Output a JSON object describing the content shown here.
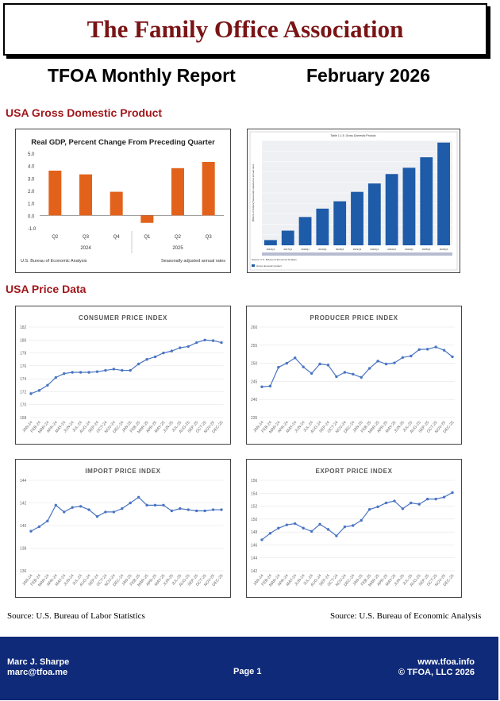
{
  "header": {
    "org_name": "The Family Office Association"
  },
  "report": {
    "title": "TFOA Monthly Report",
    "date": "February 2026"
  },
  "sections": {
    "gdp": "USA Gross Domestic Product",
    "price": "USA Price Data"
  },
  "sources": {
    "left": "Source: U.S. Bureau of Labor Statistics",
    "right": "Source: U.S. Bureau of Economic Analysis"
  },
  "footer": {
    "name": "Marc J. Sharpe",
    "email": "marc@tfoa.me",
    "page": "Page 1",
    "website": "www.tfoa.info",
    "copyright": "© TFOA, LLC 2026"
  },
  "colors": {
    "brand": "#7a1416",
    "section": "#a0171b",
    "footer_bg": "#0f2a78",
    "bar_orange": "#e2621b",
    "bar_blue": "#1e5ba8",
    "line_blue": "#4a75c2"
  },
  "chart_data": [
    {
      "type": "bar",
      "title": "Real GDP, Percent Change From Preceding Quarter",
      "categories": [
        "Q2",
        "Q3",
        "Q4",
        "Q1",
        "Q2",
        "Q3"
      ],
      "groups": [
        "2024",
        "2025"
      ],
      "values": [
        3.6,
        3.3,
        1.9,
        -0.6,
        3.8,
        4.3
      ],
      "yticks": [
        "5.0",
        "4.0",
        "3.0",
        "2.0",
        "1.0",
        "0.0",
        "-1.0"
      ],
      "ylim": [
        -1.0,
        5.0
      ],
      "source_note": "U.S. Bureau of Economic Analysis",
      "note": "Seasonally adjusted annual rates"
    },
    {
      "type": "bar",
      "title": "Table 1.1.5. Gross Domestic Product",
      "ylabel": "[Billions of dollars] Seasonally adjusted at annual rates",
      "categories": [
        "2016Q1",
        "2017Q1",
        "2018Q1",
        "2019Q1",
        "2020Q1",
        "2021Q1",
        "2022Q1",
        "2023Q1",
        "2024Q1",
        "2025Q1",
        "2025Q3"
      ],
      "values": [
        18500,
        19400,
        20700,
        21500,
        22200,
        23100,
        23900,
        24800,
        25400,
        26400,
        27800
      ],
      "ylim": [
        18000,
        28000
      ],
      "legend": "Gross domestic product",
      "source_note": "Source: U.S. Bureau of Economic Analysis"
    },
    {
      "type": "line",
      "title": "CONSUMER PRICE INDEX",
      "x": [
        "JAN-24",
        "FEB-24",
        "MAR-24",
        "APR-24",
        "MAY-24",
        "JUN-24",
        "JUL-24",
        "AUG-24",
        "SEP-24",
        "OCT-24",
        "NOV-24",
        "DEC-24",
        "JAN-25",
        "FEB-25",
        "MAR-25",
        "APR-25",
        "MAY-25",
        "JUN-25",
        "JUL-25",
        "AUG-25",
        "SEP-25",
        "OCT-25",
        "NOV-25",
        "DEC-25"
      ],
      "values": [
        171.7,
        172.2,
        173.0,
        174.2,
        174.8,
        175.0,
        175.0,
        175.0,
        175.1,
        175.3,
        175.5,
        175.3,
        175.3,
        176.3,
        177.0,
        177.4,
        178.0,
        178.3,
        178.8,
        179.0,
        179.6,
        180.0,
        179.9,
        179.6
      ],
      "yticks": [
        "182",
        "180",
        "178",
        "176",
        "174",
        "172",
        "170",
        "168"
      ],
      "ylim": [
        168,
        182
      ]
    },
    {
      "type": "line",
      "title": "PRODUCER PRICE INDEX",
      "x": [
        "JAN-24",
        "FEB-24",
        "MAR-24",
        "APR-24",
        "MAY-24",
        "JUN-24",
        "JUL-24",
        "AUG-24",
        "SEP-24",
        "OCT-24",
        "NOV-24",
        "DEC-24",
        "JAN-25",
        "FEB-25",
        "MAR-25",
        "APR-25",
        "MAY-25",
        "JUN-25",
        "JUL-25",
        "AUG-25",
        "SEP-25",
        "OCT-25",
        "NOV-25",
        "DEC-25"
      ],
      "values": [
        243.5,
        243.7,
        248.9,
        250.0,
        251.5,
        249.0,
        247.2,
        249.8,
        249.5,
        246.3,
        247.5,
        247.0,
        246.1,
        248.6,
        250.6,
        249.8,
        250.1,
        251.6,
        252.0,
        253.8,
        253.9,
        254.5,
        253.6,
        251.8
      ],
      "yticks": [
        "260",
        "255",
        "250",
        "245",
        "240",
        "235"
      ],
      "ylim": [
        235,
        260
      ]
    },
    {
      "type": "line",
      "title": "IMPORT PRICE INDEX",
      "x": [
        "JAN-24",
        "FEB-24",
        "MAR-24",
        "APR-24",
        "MAY-24",
        "JUN-24",
        "JUL-24",
        "AUG-24",
        "SEP-24",
        "OCT-24",
        "NOV-24",
        "DEC-24",
        "JAN-25",
        "FEB-25",
        "MAR-25",
        "APR-25",
        "MAY-25",
        "JUN-25",
        "JUL-25",
        "AUG-25",
        "SEP-25",
        "OCT-25",
        "NOV-25",
        "DEC-25"
      ],
      "values": [
        139.5,
        139.9,
        140.4,
        141.8,
        141.2,
        141.6,
        141.7,
        141.4,
        140.8,
        141.2,
        141.2,
        141.5,
        142.0,
        142.5,
        141.8,
        141.8,
        141.8,
        141.3,
        141.5,
        141.4,
        141.3,
        141.3,
        141.4,
        141.4
      ],
      "yticks": [
        "144",
        "142",
        "140",
        "138",
        "136"
      ],
      "ylim": [
        136,
        144
      ]
    },
    {
      "type": "line",
      "title": "EXPORT PRICE INDEX",
      "x": [
        "JAN-24",
        "FEB-24",
        "MAR-24",
        "APR-24",
        "MAY-24",
        "JUN-24",
        "JUL-24",
        "AUG-24",
        "SEP-24",
        "OCT-24",
        "NOV-24",
        "DEC-24",
        "JAN-25",
        "FEB-25",
        "MAR-25",
        "APR-25",
        "MAY-25",
        "JUN-25",
        "JUL-25",
        "AUG-25",
        "SEP-25",
        "OCT-25",
        "NOV-25",
        "DEC-25"
      ],
      "values": [
        146.8,
        147.8,
        148.6,
        149.1,
        149.3,
        148.6,
        148.1,
        149.2,
        148.4,
        147.4,
        148.8,
        149.0,
        149.8,
        151.5,
        151.9,
        152.5,
        152.8,
        151.6,
        152.5,
        152.3,
        153.1,
        153.1,
        153.4,
        154.1
      ],
      "yticks": [
        "156",
        "154",
        "152",
        "150",
        "148",
        "146",
        "144",
        "142"
      ],
      "ylim": [
        142,
        156
      ]
    }
  ]
}
